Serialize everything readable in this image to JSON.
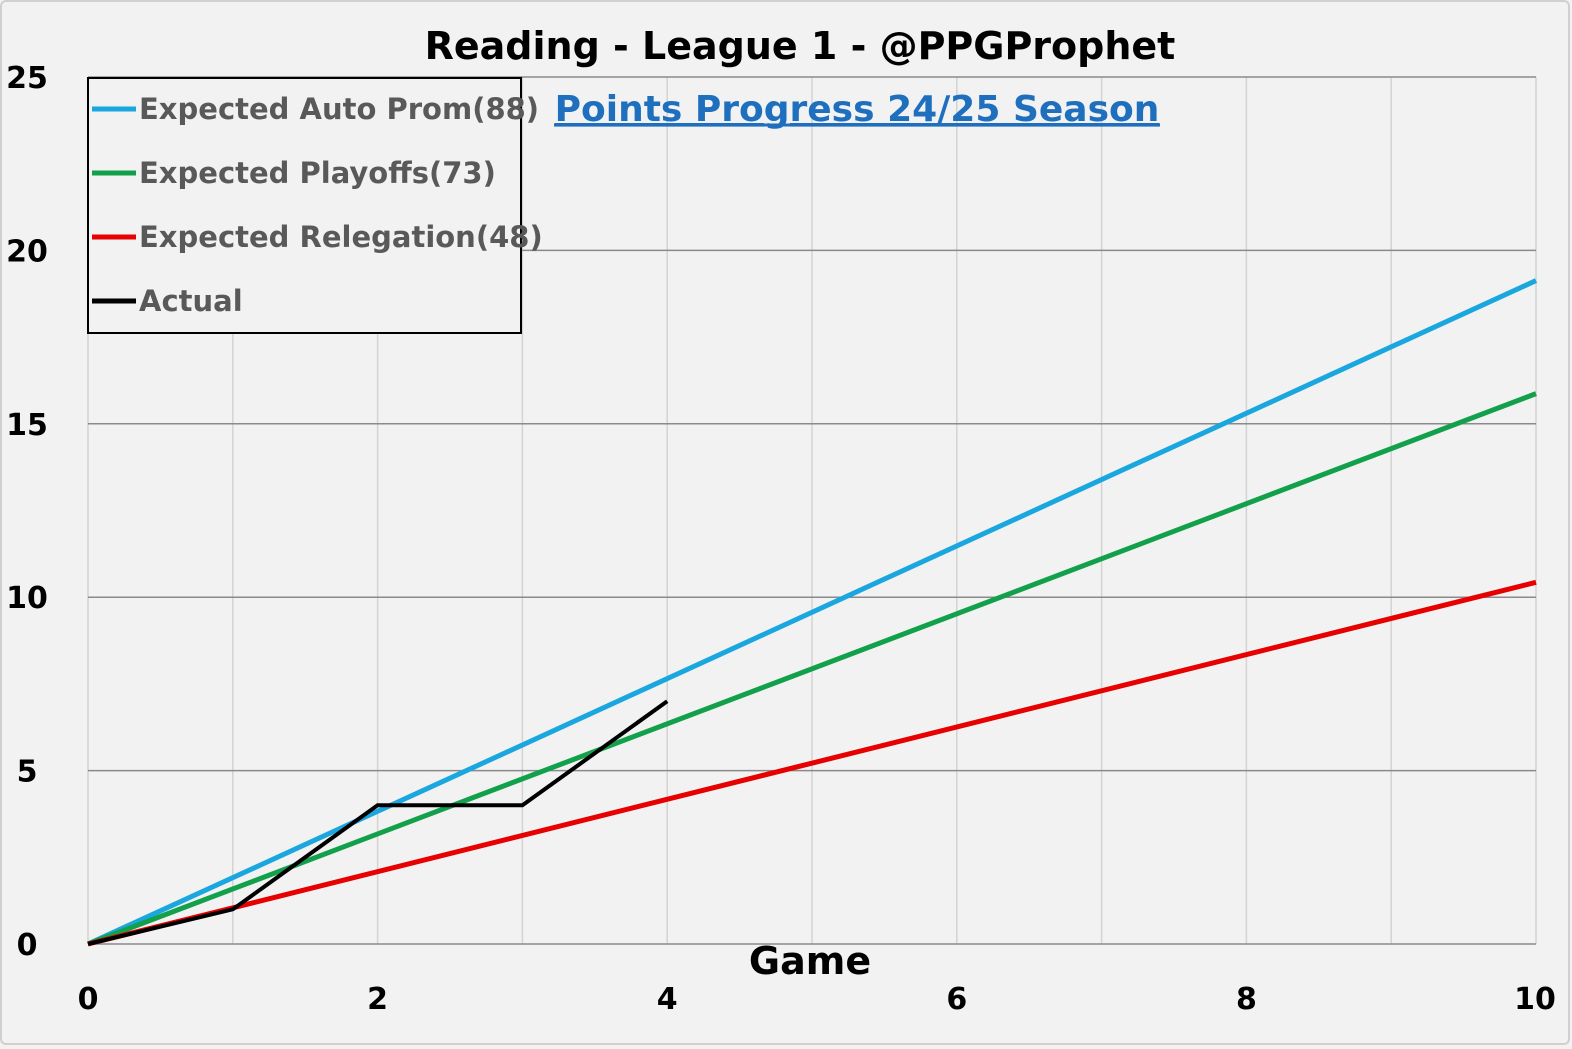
{
  "chart_data": {
    "type": "line",
    "title": "Reading - League 1 - @PPGProphet",
    "subtitle": "Points Progress 24/25 Season",
    "xlabel": "Game",
    "ylabel": "",
    "xlim": [
      0,
      10
    ],
    "ylim": [
      0,
      25
    ],
    "x_ticks": [
      "0",
      "2",
      "4",
      "6",
      "8",
      "10"
    ],
    "y_ticks": [
      "0",
      "5",
      "10",
      "15",
      "20",
      "25"
    ],
    "grid": true,
    "legend_position": "top-left",
    "series": [
      {
        "name": "Expected Auto Prom(88)",
        "color": "#1aa7e0",
        "points": [
          [
            0,
            0
          ],
          [
            10,
            19.13
          ]
        ]
      },
      {
        "name": "Expected Playoffs(73)",
        "color": "#12a14a",
        "points": [
          [
            0,
            0
          ],
          [
            10,
            15.87
          ]
        ]
      },
      {
        "name": "Expected Relegation(48)",
        "color": "#e60000",
        "points": [
          [
            0,
            0
          ],
          [
            10,
            10.43
          ]
        ]
      },
      {
        "name": "Actual",
        "color": "#000000",
        "points": [
          [
            0,
            0
          ],
          [
            1,
            1
          ],
          [
            2,
            4
          ],
          [
            3,
            4
          ],
          [
            4,
            7
          ]
        ]
      }
    ]
  }
}
